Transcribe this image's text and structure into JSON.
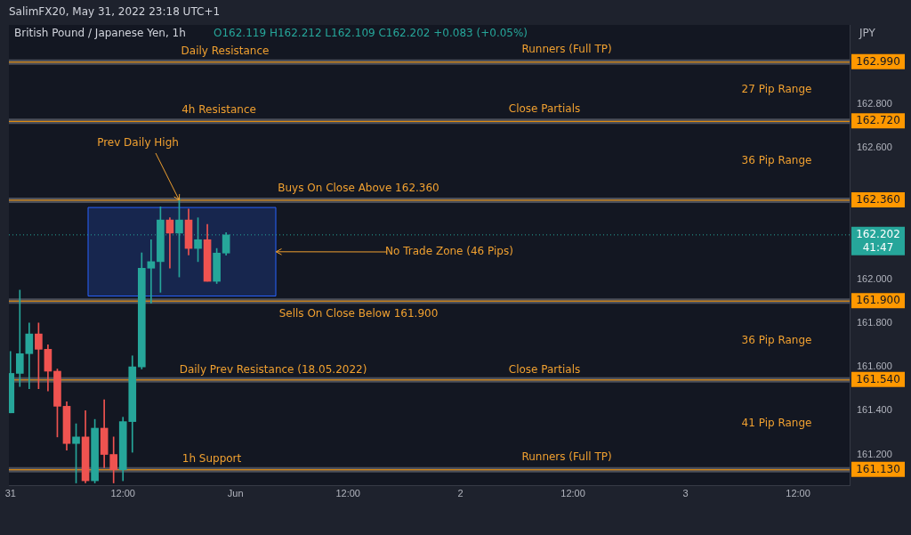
{
  "chart_data": {
    "type": "candlestick",
    "title": "British Pound / Japanese Yen, 1h",
    "subtitle": "O162.119 H162.212 L162.109 C162.202 +0.083 (+0.05%)",
    "ylabel": "JPY",
    "x": [
      "2022-05-31T00:00",
      "2022-05-31T01:00",
      "2022-05-31T02:00",
      "2022-05-31T03:00",
      "2022-05-31T04:00",
      "2022-05-31T05:00",
      "2022-05-31T06:00",
      "2022-05-31T07:00",
      "2022-05-31T08:00",
      "2022-05-31T09:00",
      "2022-05-31T10:00",
      "2022-05-31T11:00",
      "2022-05-31T12:00",
      "2022-05-31T13:00",
      "2022-05-31T14:00",
      "2022-05-31T15:00",
      "2022-05-31T16:00",
      "2022-05-31T17:00",
      "2022-05-31T18:00",
      "2022-05-31T19:00",
      "2022-05-31T20:00",
      "2022-05-31T21:00",
      "2022-05-31T22:00",
      "2022-05-31T23:00"
    ],
    "ohlc": [
      [
        161.39,
        161.67,
        161.39,
        161.57
      ],
      [
        161.57,
        161.95,
        161.51,
        161.66
      ],
      [
        161.66,
        161.8,
        161.5,
        161.75
      ],
      [
        161.75,
        161.8,
        161.5,
        161.68
      ],
      [
        161.68,
        161.7,
        161.49,
        161.58
      ],
      [
        161.58,
        161.59,
        161.28,
        161.42
      ],
      [
        161.42,
        161.44,
        161.22,
        161.25
      ],
      [
        161.25,
        161.34,
        161.07,
        161.28
      ],
      [
        161.28,
        161.4,
        161.07,
        161.08
      ],
      [
        161.08,
        161.36,
        161.07,
        161.32
      ],
      [
        161.32,
        161.45,
        161.14,
        161.2
      ],
      [
        161.2,
        161.28,
        161.07,
        161.13
      ],
      [
        161.13,
        161.37,
        161.08,
        161.35
      ],
      [
        161.35,
        161.65,
        161.21,
        161.6
      ],
      [
        161.6,
        162.12,
        161.59,
        162.05
      ],
      [
        162.05,
        162.18,
        161.89,
        162.08
      ],
      [
        162.08,
        162.33,
        161.94,
        162.27
      ],
      [
        162.27,
        162.28,
        162.05,
        162.21
      ],
      [
        162.21,
        162.37,
        162.01,
        162.27
      ],
      [
        162.27,
        162.32,
        162.11,
        162.14
      ],
      [
        162.14,
        162.28,
        162.08,
        162.18
      ],
      [
        162.18,
        162.25,
        161.99,
        161.99
      ],
      [
        161.99,
        162.14,
        161.98,
        162.119
      ],
      [
        162.119,
        162.212,
        162.109,
        162.202
      ]
    ],
    "colors": [
      "#26a69a",
      "#26a69a",
      "#26a69a",
      "#ef5350",
      "#ef5350",
      "#ef5350",
      "#ef5350",
      "#26a69a",
      "#ef5350",
      "#26a69a",
      "#ef5350",
      "#ef5350",
      "#26a69a",
      "#26a69a",
      "#26a69a",
      "#26a69a",
      "#26a69a",
      "#ef5350",
      "#26a69a",
      "#ef5350",
      "#26a69a",
      "#ef5350",
      "#26a69a",
      "#26a69a"
    ],
    "xlim": [
      "2022-05-30T23:50",
      "2022-06-03T17:30"
    ],
    "xticks": [
      {
        "value": "2022-05-31T00:00",
        "label": "31"
      },
      {
        "value": "2022-05-31T12:00",
        "label": "12:00"
      },
      {
        "value": "2022-06-01T00:00",
        "label": "Jun"
      },
      {
        "value": "2022-06-01T12:00",
        "label": "12:00"
      },
      {
        "value": "2022-06-02T00:00",
        "label": "2"
      },
      {
        "value": "2022-06-02T12:00",
        "label": "12:00"
      },
      {
        "value": "2022-06-03T00:00",
        "label": "3"
      },
      {
        "value": "2022-06-03T12:00",
        "label": "12:00"
      }
    ],
    "ylim": [
      161.06,
      163.16
    ],
    "yticks": [
      {
        "value": 161.2,
        "label": "161.200"
      },
      {
        "value": 161.4,
        "label": "161.400"
      },
      {
        "value": 161.6,
        "label": "161.600"
      },
      {
        "value": 161.8,
        "label": "161.800"
      },
      {
        "value": 162.0,
        "label": "162.000"
      },
      {
        "value": 162.6,
        "label": "162.600"
      },
      {
        "value": 162.8,
        "label": "162.800"
      }
    ],
    "grid": false,
    "legend": false,
    "ref_lines": [
      {
        "axis": "y",
        "value": 162.99,
        "label": "162.990",
        "color": "#ff9800"
      },
      {
        "axis": "y",
        "value": 162.72,
        "label": "162.720",
        "color": "#ff9800"
      },
      {
        "axis": "y",
        "value": 162.36,
        "label": "162.360",
        "color": "#ff9800"
      },
      {
        "axis": "y",
        "value": 161.9,
        "label": "161.900",
        "color": "#ff9800"
      },
      {
        "axis": "y",
        "value": 161.54,
        "label": "161.540",
        "color": "#ff9800"
      },
      {
        "axis": "y",
        "value": 161.13,
        "label": "161.130",
        "color": "#ff9800"
      },
      {
        "axis": "y",
        "value": 162.202,
        "label": "162.202\n41:47",
        "color": "#26a69a",
        "line_style": "dotted"
      }
    ],
    "bands": [
      {
        "axis": "y",
        "from": 161.923,
        "to": 162.327,
        "color": "#2962ff"
      }
    ],
    "annotations": [
      "SalimFX20, May 31, 2022 23:18 UTC+1",
      "Daily Resistance",
      "Runners (Full TP)",
      "27 Pip Range",
      "4h Resistance",
      "Close Partials",
      {
        "text": "Prev Daily High",
        "x": "2022-05-31T18:00",
        "y": 162.36
      },
      "36 Pip Range",
      "Buys On Close Above 162.360",
      {
        "text": "No Trade Zone (46 Pips)",
        "x": "2022-06-01T04:20",
        "y": 162.125
      },
      "Sells On Close Below 161.900",
      "36 Pip Range",
      "Daily Prev Resistance (18.05.2022)",
      "Close Partials",
      "41 Pip Range",
      "1h Support",
      "Runners (Full TP)"
    ]
  }
}
